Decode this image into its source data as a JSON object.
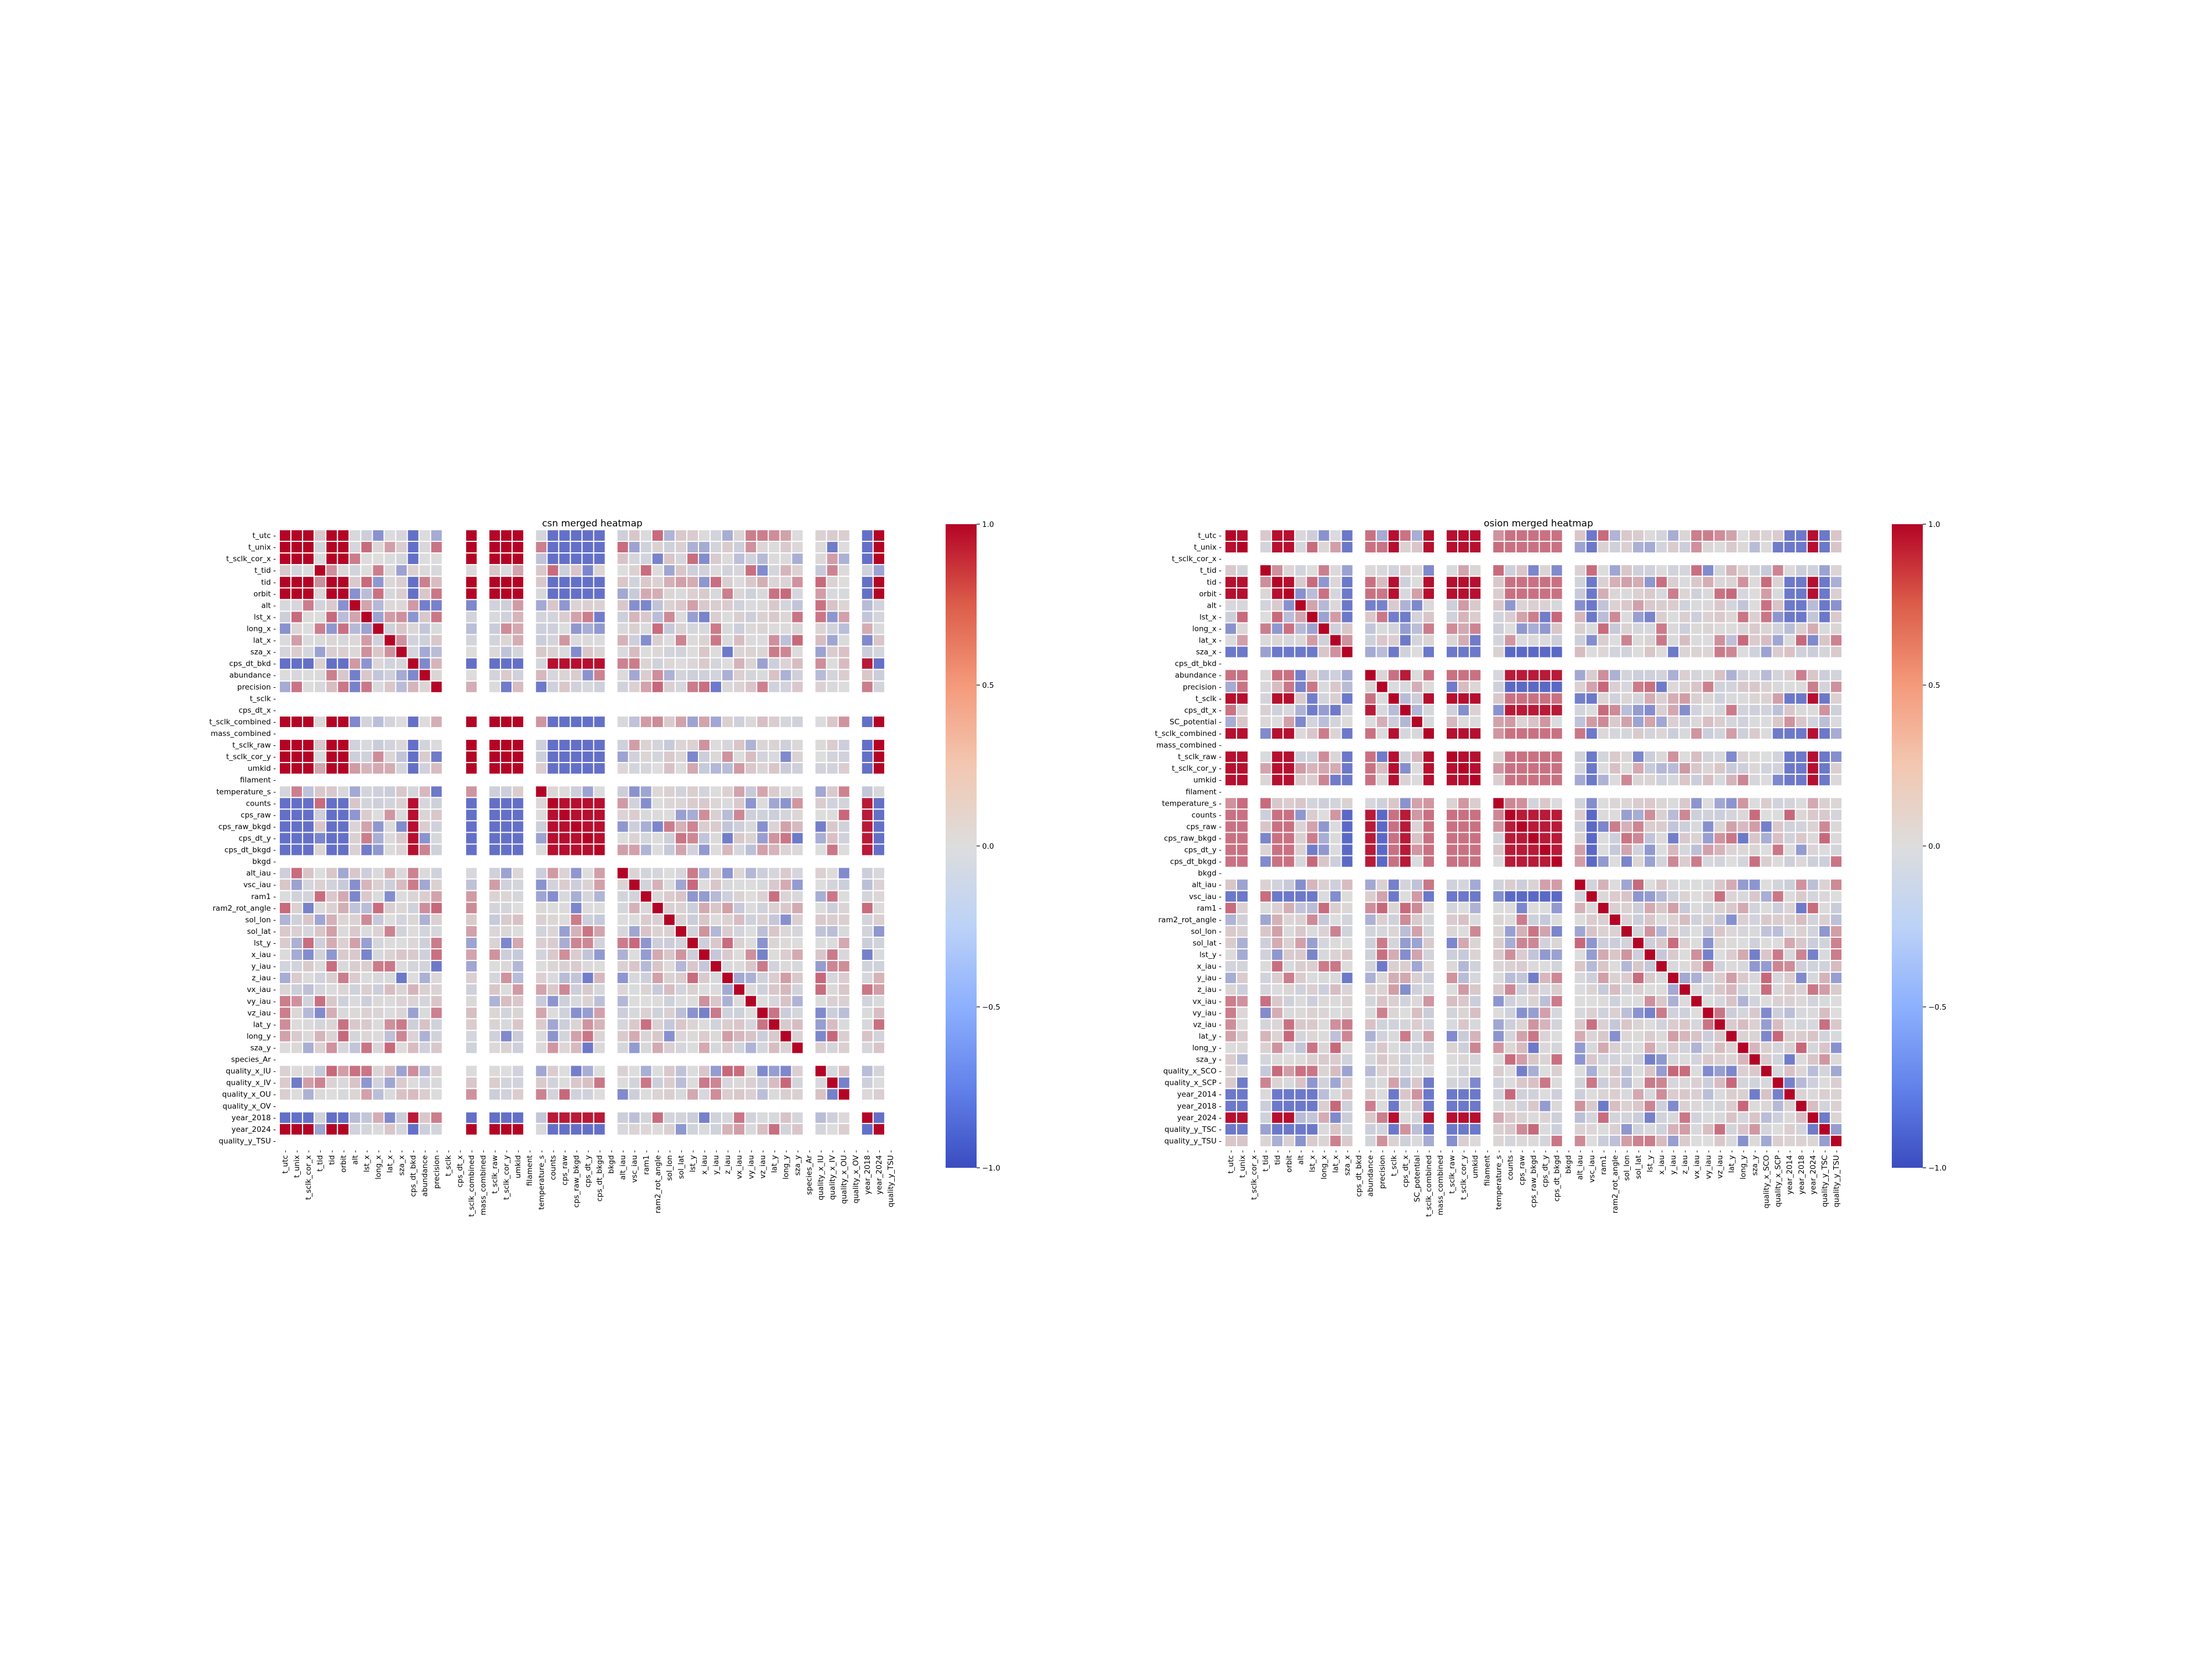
{
  "colors": {
    "cmap": "coolwarm",
    "low": "#3b4cc0",
    "mid": "#dddddd",
    "high": "#b40426",
    "cell_border": "#ffffff"
  },
  "colorbar_ticks": [
    "1.0",
    "0.5",
    "0.0",
    "−0.5",
    "−1.0"
  ],
  "chart_data": [
    {
      "type": "heatmap",
      "title": "csn merged heatmap",
      "vmin": -1,
      "vmax": 1,
      "cmap": "coolwarm",
      "annotated": true,
      "labels": [
        "t_utc",
        "t_unix",
        "t_sclk_cor_x",
        "t_tid",
        "tid",
        "orbit",
        "alt",
        "lst_x",
        "long_x",
        "lat_x",
        "sza_x",
        "cps_dt_bkd",
        "abundance",
        "precision",
        "t_sclk",
        "cps_dt_x",
        "t_sclk_combined",
        "mass_combined",
        "t_sclk_raw",
        "t_sclk_cor_y",
        "umkid",
        "filament",
        "temperature_s",
        "counts",
        "cps_raw",
        "cps_raw_bkgd",
        "cps_dt_y",
        "cps_dt_bkgd",
        "bkgd",
        "alt_iau",
        "vsc_iau",
        "ram1",
        "ram2_rot_angle",
        "sol_lon",
        "sol_lat",
        "lst_y",
        "x_iau",
        "y_iau",
        "z_iau",
        "vx_iau",
        "vy_iau",
        "vz_iau",
        "lat_y",
        "long_y",
        "sza_y",
        "species_Ar",
        "quality_x_IU",
        "quality_x_IV",
        "quality_x_OU",
        "quality_x_OV",
        "year_2018",
        "year_2024",
        "quality_y_TSU"
      ],
      "missing": [
        "t_sclk",
        "cps_dt_x",
        "mass_combined",
        "filament",
        "bkgd",
        "species_Ar",
        "quality_x_OV",
        "quality_y_TSU"
      ],
      "groups": [
        {
          "members": [
            "t_utc",
            "t_unix",
            "t_sclk_cor_x",
            "tid",
            "orbit",
            "t_sclk_combined",
            "t_sclk_raw",
            "t_sclk_cor_y",
            "umkid",
            "year_2024"
          ],
          "value": 1.0
        },
        {
          "members": [
            "counts",
            "cps_raw",
            "cps_raw_bkgd",
            "cps_dt_y",
            "cps_dt_bkgd",
            "cps_dt_bkd"
          ],
          "value": 0.95
        }
      ],
      "cross": [
        {
          "a": [
            "t_utc",
            "t_unix",
            "t_sclk_cor_x",
            "tid",
            "orbit",
            "t_sclk_combined",
            "t_sclk_raw",
            "t_sclk_cor_y",
            "umkid",
            "year_2024"
          ],
          "b": [
            "counts",
            "cps_raw",
            "cps_raw_bkgd",
            "cps_dt_y",
            "cps_dt_bkgd",
            "cps_dt_bkd",
            "year_2018"
          ],
          "value": -0.75
        },
        {
          "a": [
            "counts",
            "cps_raw",
            "cps_raw_bkgd",
            "cps_dt_y",
            "cps_dt_bkgd",
            "cps_dt_bkd"
          ],
          "b": [
            "year_2018"
          ],
          "value": 0.9
        },
        {
          "a": [
            "t_utc",
            "t_unix",
            "t_sclk_cor_x",
            "tid",
            "orbit",
            "t_sclk_combined",
            "t_sclk_raw",
            "t_sclk_cor_y",
            "umkid"
          ],
          "b": [
            "year_2018"
          ],
          "value": -1.0
        }
      ]
    },
    {
      "type": "heatmap",
      "title": "osion merged heatmap",
      "vmin": -1,
      "vmax": 1,
      "cmap": "coolwarm",
      "annotated": true,
      "labels": [
        "t_utc",
        "t_unix",
        "t_sclk_cor_x",
        "t_tid",
        "tid",
        "orbit",
        "alt",
        "lst_x",
        "long_x",
        "lat_x",
        "sza_x",
        "cps_dt_bkd",
        "abundance",
        "precision",
        "t_sclk",
        "cps_dt_x",
        "SC_potential",
        "t_sclk_combined",
        "mass_combined",
        "t_sclk_raw",
        "t_sclk_cor_y",
        "umkid",
        "filament",
        "temperature_s",
        "counts",
        "cps_raw",
        "cps_raw_bkgd",
        "cps_dt_y",
        "cps_dt_bkgd",
        "bkgd",
        "alt_iau",
        "vsc_iau",
        "ram1",
        "ram2_rot_angle",
        "sol_lon",
        "sol_lat",
        "lst_y",
        "x_iau",
        "y_iau",
        "z_iau",
        "vx_iau",
        "vy_iau",
        "vz_iau",
        "lat_y",
        "long_y",
        "sza_y",
        "quality_x_SCO",
        "quality_x_SCP",
        "year_2014",
        "year_2018",
        "year_2024",
        "quality_y_TSC",
        "quality_y_TSU"
      ],
      "missing": [
        "t_sclk_cor_x",
        "cps_dt_bkd",
        "mass_combined",
        "filament",
        "bkgd"
      ],
      "groups": [
        {
          "members": [
            "t_utc",
            "t_unix",
            "tid",
            "orbit",
            "t_sclk",
            "t_sclk_combined",
            "t_sclk_raw",
            "t_sclk_cor_y",
            "umkid",
            "year_2024"
          ],
          "value": 0.95
        },
        {
          "members": [
            "counts",
            "cps_raw",
            "cps_raw_bkgd",
            "cps_dt_y",
            "cps_dt_bkgd",
            "abundance",
            "cps_dt_x"
          ],
          "value": 0.9
        }
      ],
      "cross": [
        {
          "a": [
            "t_utc",
            "t_unix",
            "tid",
            "orbit",
            "t_sclk",
            "t_sclk_combined",
            "t_sclk_raw",
            "t_sclk_cor_y",
            "umkid"
          ],
          "b": [
            "counts",
            "cps_raw",
            "cps_raw_bkgd",
            "cps_dt_y",
            "cps_dt_bkgd",
            "abundance"
          ],
          "value": 0.5
        },
        {
          "a": [
            "t_utc",
            "t_unix",
            "tid",
            "orbit",
            "t_sclk",
            "t_sclk_combined",
            "t_sclk_raw",
            "t_sclk_cor_y",
            "umkid",
            "alt",
            "lst_x"
          ],
          "b": [
            "vsc_iau",
            "sza_x",
            "year_2014",
            "year_2018",
            "quality_y_TSC"
          ],
          "value": -0.7
        },
        {
          "a": [
            "counts",
            "cps_raw",
            "cps_raw_bkgd",
            "cps_dt_y",
            "cps_dt_bkgd"
          ],
          "b": [
            "precision",
            "vsc_iau",
            "sza_x"
          ],
          "value": -0.8
        }
      ]
    }
  ]
}
